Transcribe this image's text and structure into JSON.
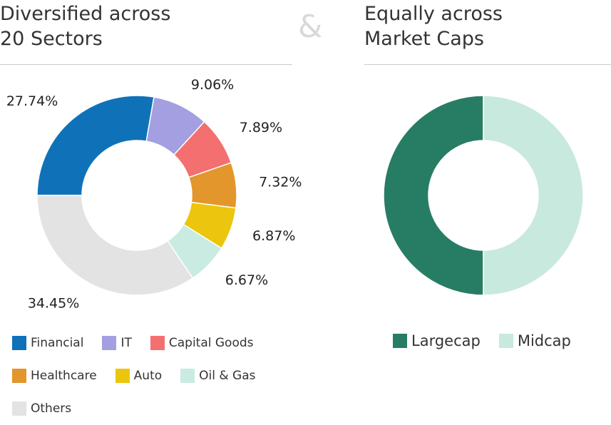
{
  "chart_data": [
    {
      "type": "donut",
      "title": "Diversified across 20 Sectors",
      "categories": [
        "Financial",
        "IT",
        "Capital Goods",
        "Healthcare",
        "Auto",
        "Oil & Gas",
        "Others"
      ],
      "values": [
        27.74,
        9.06,
        7.89,
        7.32,
        6.87,
        6.67,
        34.45
      ],
      "value_labels": [
        "27.74%",
        "9.06%",
        "7.89%",
        "7.32%",
        "6.87%",
        "6.67%",
        "34.45%"
      ],
      "colors": [
        "#0f72b9",
        "#a39fe0",
        "#f46f6f",
        "#e3962b",
        "#ecc60e",
        "#c9ebe2",
        "#e3e3e3"
      ]
    },
    {
      "type": "donut",
      "title": "Equally across Market Caps",
      "categories": [
        "Largecap",
        "Midcap"
      ],
      "values": [
        50,
        50
      ],
      "colors": [
        "#277d63",
        "#c8e9de"
      ]
    }
  ],
  "separator": "&"
}
